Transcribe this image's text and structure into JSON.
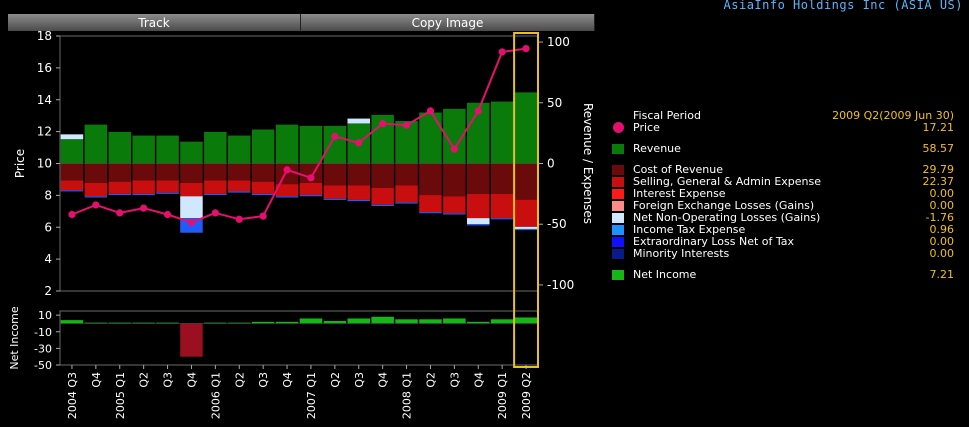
{
  "header": {
    "company": "AsiaInfo Holdings Inc (ASIA US)"
  },
  "tabs": [
    {
      "label": "Track"
    },
    {
      "label": "Copy Image"
    }
  ],
  "chart_data": {
    "type": "bar",
    "categories": [
      "2004 Q3",
      "Q4",
      "2005 Q1",
      "Q2",
      "Q3",
      "Q4",
      "2006 Q1",
      "Q2",
      "Q3",
      "Q4",
      "2007 Q1",
      "Q2",
      "Q3",
      "Q4",
      "2008 Q1",
      "Q2",
      "Q3",
      "Q4",
      "2009 Q1",
      "2009 Q2"
    ],
    "price_axis": {
      "label": "Price",
      "ylim": [
        2,
        18
      ],
      "ticks": [
        2,
        4,
        6,
        8,
        10,
        12,
        14,
        16,
        18
      ]
    },
    "rev_axis": {
      "label": "Revenue / Expenses",
      "ylim": [
        -105,
        105
      ],
      "ticks": [
        -100,
        -50,
        0,
        50,
        100
      ]
    },
    "ni_axis": {
      "label": "Net Income",
      "ylim": [
        -50,
        15
      ],
      "ticks": [
        10,
        -10,
        -30,
        -50
      ]
    },
    "price": [
      6.8,
      7.4,
      6.9,
      7.2,
      6.8,
      6.3,
      6.9,
      6.5,
      6.7,
      9.6,
      9.1,
      11.7,
      11.3,
      12.5,
      12.4,
      13.3,
      10.9,
      13.3,
      17.0,
      17.21
    ],
    "series": [
      {
        "name": "Revenue",
        "color": "#0a7a0a",
        "values": [
          20,
          32,
          26,
          23,
          23,
          18,
          26,
          23,
          28,
          32,
          31,
          31,
          33,
          40,
          35,
          42,
          45,
          50,
          51,
          58.57
        ]
      },
      {
        "name": "Cost of Revenue",
        "color": "#6b0a0a",
        "values": [
          -14,
          -16,
          -15,
          -14,
          -14,
          -16,
          -14,
          -14,
          -15,
          -17,
          -16,
          -18,
          -18,
          -20,
          -18,
          -26,
          -27,
          -25,
          -25,
          -29.79
        ]
      },
      {
        "name": "Selling, General & Admin Expense",
        "color": "#c80e0e",
        "values": [
          -8,
          -11,
          -10,
          -11,
          -10,
          -11,
          -11,
          -9,
          -10,
          -10,
          -10,
          -11,
          -12,
          -14,
          -14,
          -14,
          -14,
          -20,
          -20,
          -22.37
        ]
      },
      {
        "name": "Net Non-Operating Losses (Gains)",
        "color": "#cfe7ff",
        "values": [
          4,
          0,
          0,
          0,
          0,
          -18,
          0,
          0,
          0,
          0,
          0,
          0,
          4,
          0,
          0,
          0,
          0,
          -5,
          0,
          -1.76
        ]
      },
      {
        "name": "Income Tax Expense",
        "color": "#1f5cff",
        "values": [
          -1,
          -1,
          -1,
          -1,
          -1,
          -12,
          -1,
          -1,
          -1,
          -1,
          -1,
          -1,
          -1,
          -1,
          -1,
          -1,
          -1,
          -1,
          -1,
          -0.96
        ]
      }
    ],
    "net_income": [
      4,
      1,
      1,
      1,
      1,
      -40,
      1,
      1,
      2,
      2,
      6,
      3,
      6,
      8,
      5,
      5,
      6,
      2,
      5,
      7.21
    ],
    "highlight_category": "2009 Q2"
  },
  "legend": {
    "fiscal_period": {
      "label": "Fiscal Period",
      "value": "2009 Q2(2009 Jun 30)"
    },
    "items": [
      {
        "label": "Price",
        "value": "17.21",
        "color": "#e5106e",
        "dot": true,
        "gap_after": true
      },
      {
        "label": "Revenue",
        "value": "58.57",
        "color": "#0a7a0a",
        "gap_after": true
      },
      {
        "label": "Cost of Revenue",
        "value": "29.79",
        "color": "#6b0a0a"
      },
      {
        "label": "Selling, General & Admin Expense",
        "value": "22.37",
        "color": "#c80e0e"
      },
      {
        "label": "Interest Expense",
        "value": "0.00",
        "color": "#ff1a1a"
      },
      {
        "label": "Foreign Exchange Losses (Gains)",
        "value": "0.00",
        "color": "#ff8a8a"
      },
      {
        "label": "Net Non-Operating Losses (Gains)",
        "value": "-1.76",
        "color": "#cfe7ff"
      },
      {
        "label": "Income Tax Expense",
        "value": "0.96",
        "color": "#1e90ff"
      },
      {
        "label": "Extraordinary Loss Net of Tax",
        "value": "0.00",
        "color": "#1010ff"
      },
      {
        "label": "Minority Interests",
        "value": "0.00",
        "color": "#0a1a8a",
        "gap_after": true
      },
      {
        "label": "Net Income",
        "value": "7.21",
        "color": "#14b814"
      }
    ]
  }
}
